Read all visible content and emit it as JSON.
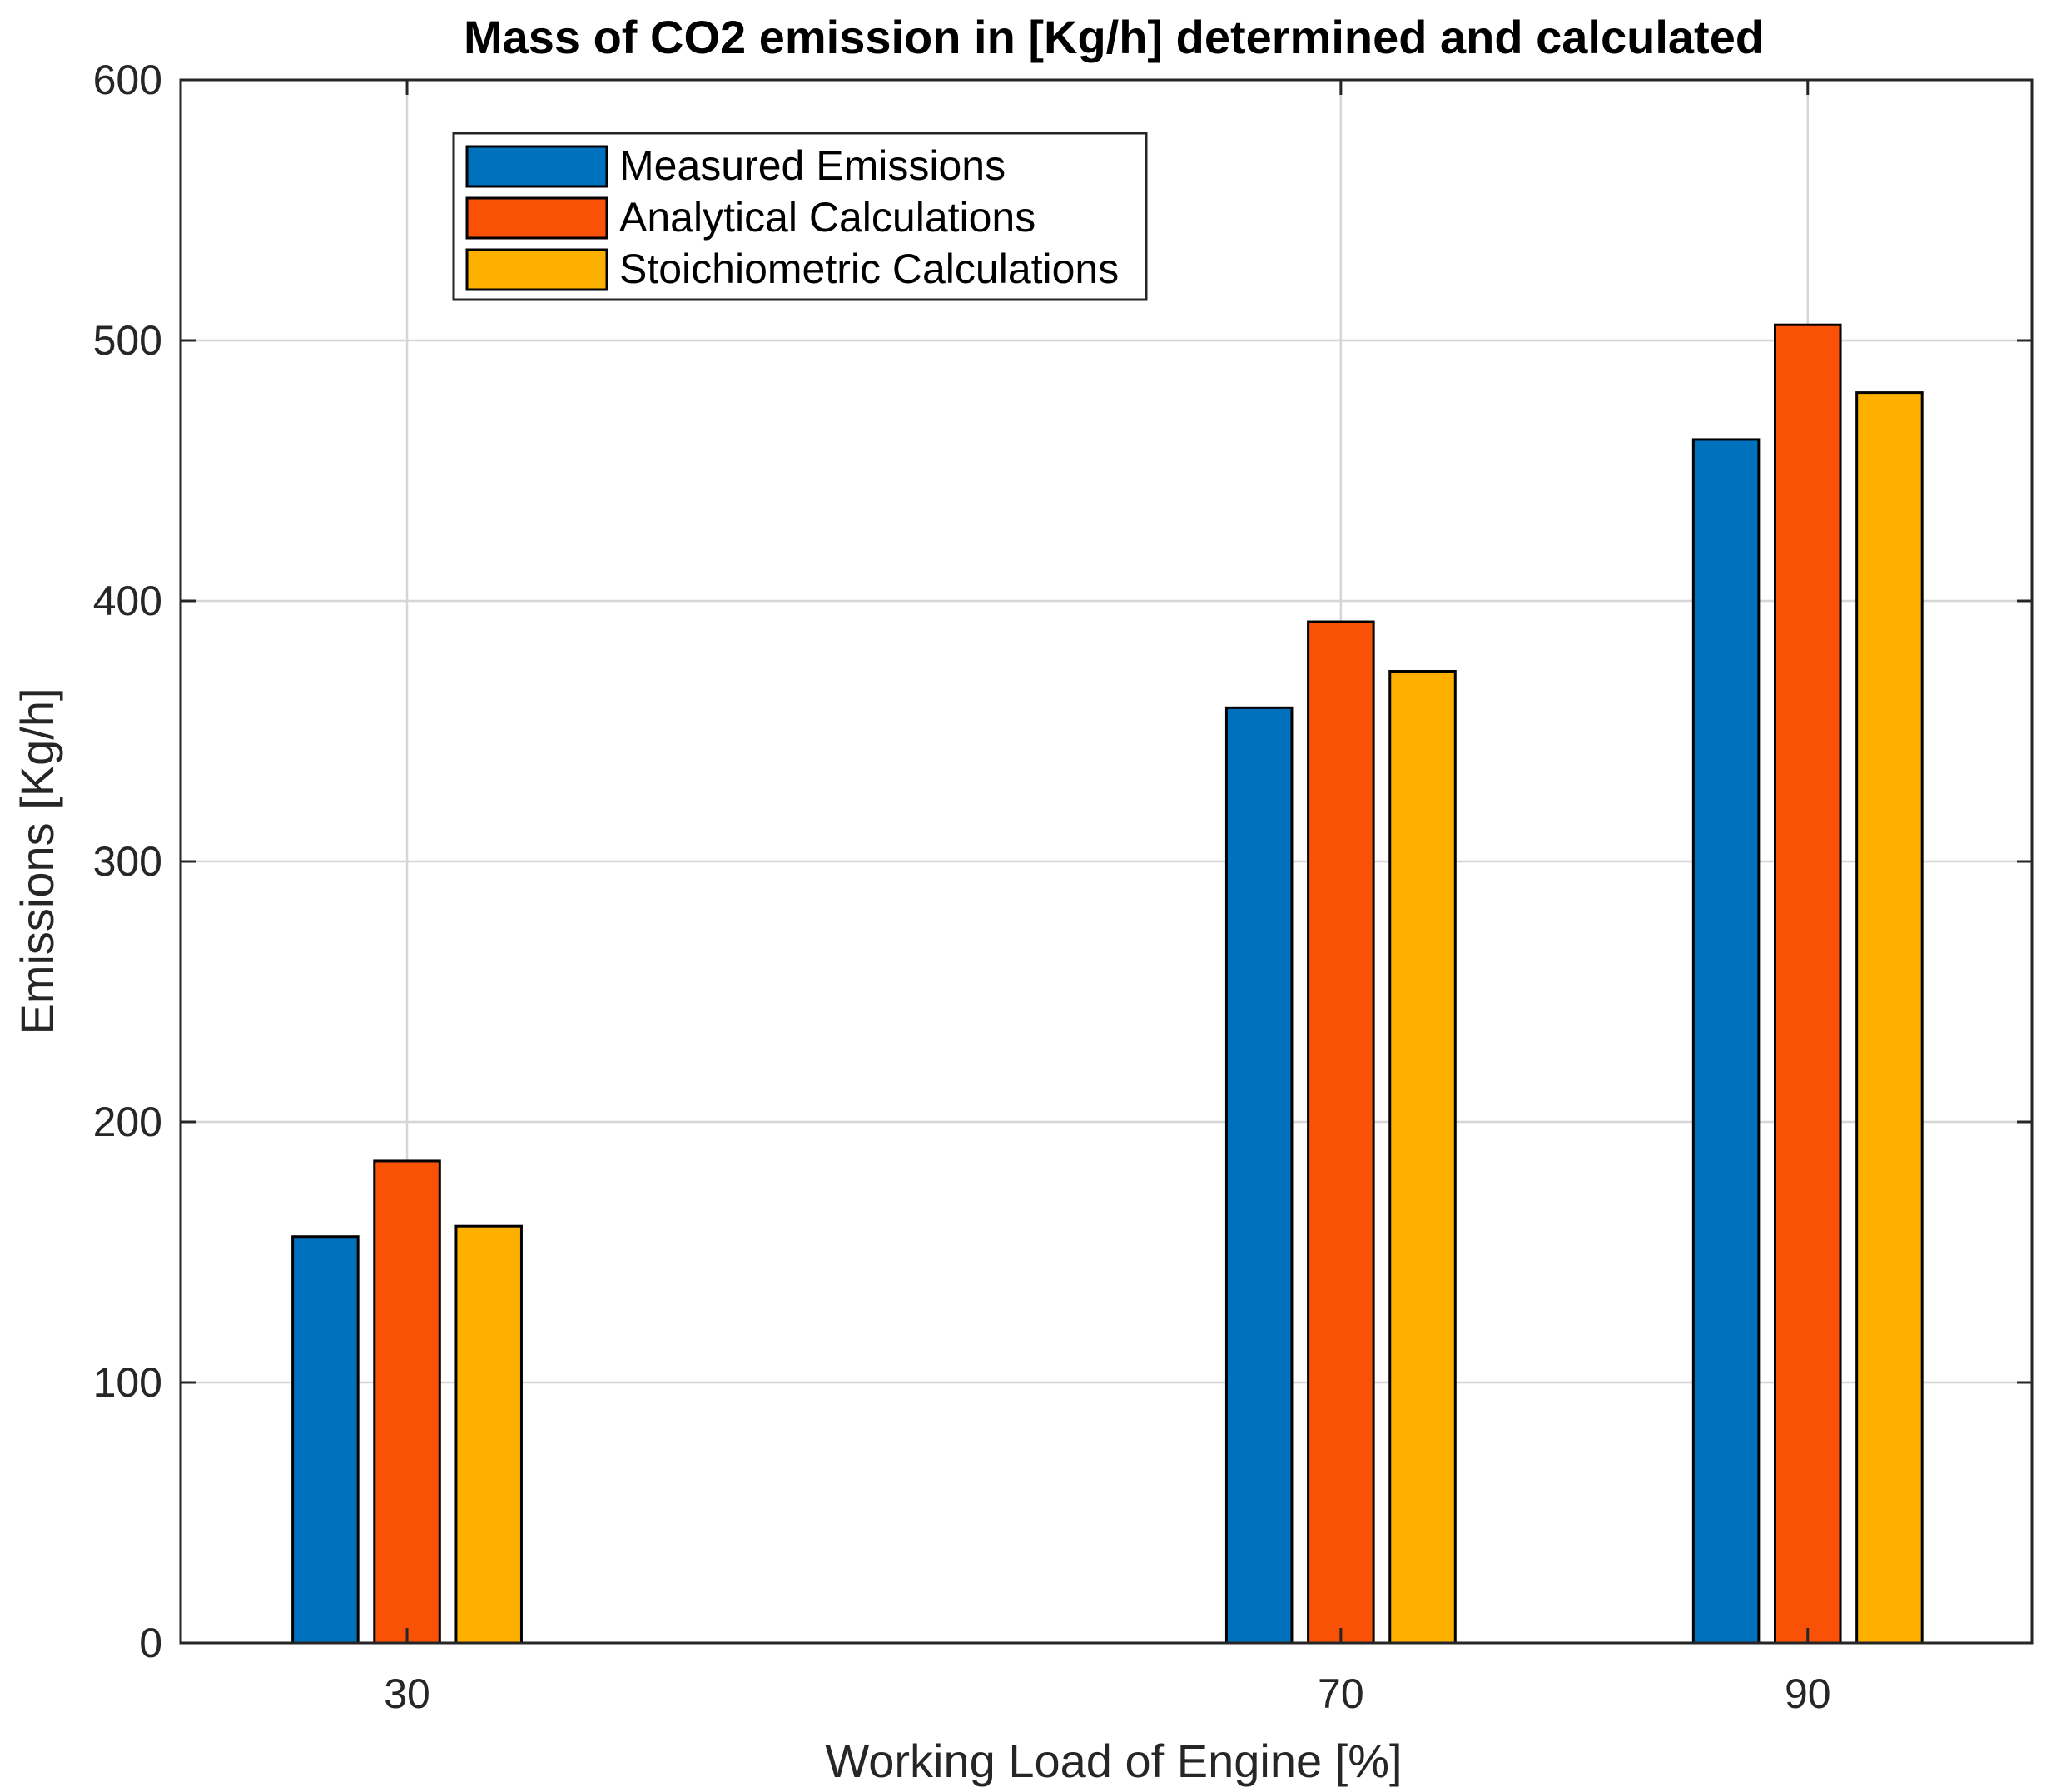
{
  "chart_data": {
    "type": "bar",
    "title": "Mass of CO2 emission in [Kg/h] determined and calculated",
    "xlabel": "Working Load of Engine [%]",
    "ylabel": "Emissions [Kg/h]",
    "x": [
      30,
      70,
      90
    ],
    "xlim": [
      20.3,
      99.6
    ],
    "ylim": [
      0,
      600
    ],
    "yticks": [
      0,
      100,
      200,
      300,
      400,
      500,
      600
    ],
    "xtick_labels": [
      "30",
      "70",
      "90"
    ],
    "ytick_labels": [
      "0",
      "100",
      "200",
      "300",
      "400",
      "500",
      "600"
    ],
    "grid": true,
    "legend_position": "top-left",
    "series": [
      {
        "name": "Measured Emissions",
        "color": "#0072BD",
        "values": [
          156,
          359,
          462
        ]
      },
      {
        "name": "Analytical Calculations",
        "color": "#F95106",
        "values": [
          185,
          392,
          506
        ]
      },
      {
        "name": "Stoichiometric Calculations",
        "color": "#FDB000",
        "values": [
          160,
          373,
          480
        ]
      }
    ]
  }
}
